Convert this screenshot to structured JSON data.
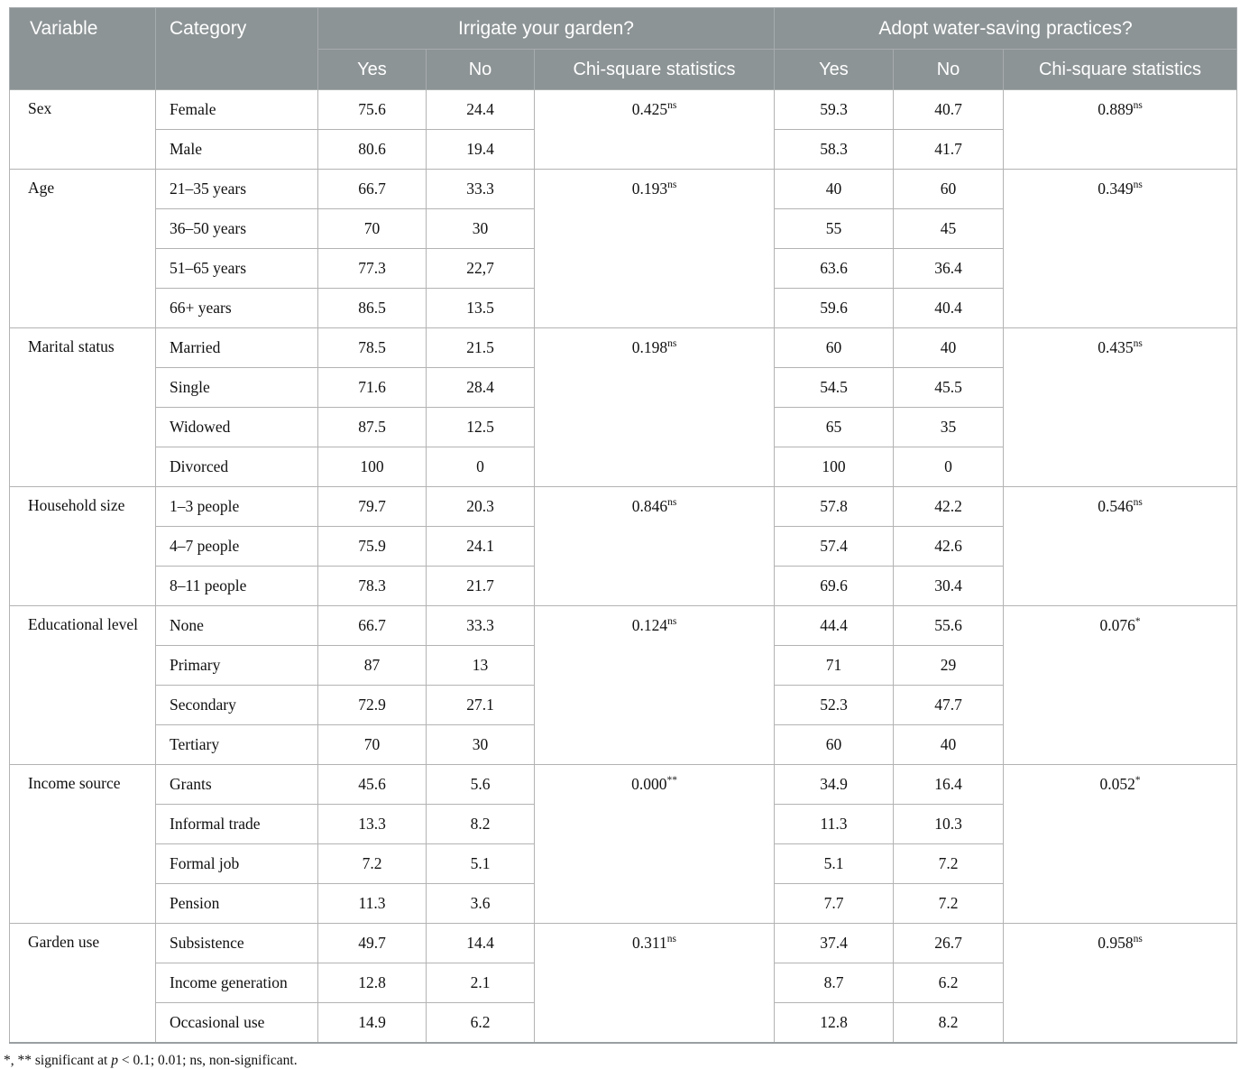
{
  "table": {
    "header": {
      "variable": "Variable",
      "category": "Category",
      "group1": "Irrigate your garden?",
      "group2": "Adopt water-saving practices?",
      "yes": "Yes",
      "no": "No",
      "chi": "Chi-square statistics"
    },
    "sections": [
      {
        "variable": "Sex",
        "chi_irrigate": {
          "value": "0.425",
          "marker": "ns"
        },
        "chi_adopt": {
          "value": "0.889",
          "marker": "ns"
        },
        "rows": [
          {
            "category": "Female",
            "irrigate_yes": "75.6",
            "irrigate_no": "24.4",
            "adopt_yes": "59.3",
            "adopt_no": "40.7"
          },
          {
            "category": "Male",
            "irrigate_yes": "80.6",
            "irrigate_no": "19.4",
            "adopt_yes": "58.3",
            "adopt_no": "41.7"
          }
        ]
      },
      {
        "variable": "Age",
        "chi_irrigate": {
          "value": "0.193",
          "marker": "ns"
        },
        "chi_adopt": {
          "value": "0.349",
          "marker": "ns"
        },
        "rows": [
          {
            "category": "21–35 years",
            "irrigate_yes": "66.7",
            "irrigate_no": "33.3",
            "adopt_yes": "40",
            "adopt_no": "60"
          },
          {
            "category": "36–50 years",
            "irrigate_yes": "70",
            "irrigate_no": "30",
            "adopt_yes": "55",
            "adopt_no": "45"
          },
          {
            "category": "51–65 years",
            "irrigate_yes": "77.3",
            "irrigate_no": "22,7",
            "adopt_yes": "63.6",
            "adopt_no": "36.4"
          },
          {
            "category": "66+ years",
            "irrigate_yes": "86.5",
            "irrigate_no": "13.5",
            "adopt_yes": "59.6",
            "adopt_no": "40.4"
          }
        ]
      },
      {
        "variable": "Marital status",
        "chi_irrigate": {
          "value": "0.198",
          "marker": "ns"
        },
        "chi_adopt": {
          "value": "0.435",
          "marker": "ns"
        },
        "rows": [
          {
            "category": "Married",
            "irrigate_yes": "78.5",
            "irrigate_no": "21.5",
            "adopt_yes": "60",
            "adopt_no": "40"
          },
          {
            "category": "Single",
            "irrigate_yes": "71.6",
            "irrigate_no": "28.4",
            "adopt_yes": "54.5",
            "adopt_no": "45.5"
          },
          {
            "category": "Widowed",
            "irrigate_yes": "87.5",
            "irrigate_no": "12.5",
            "adopt_yes": "65",
            "adopt_no": "35"
          },
          {
            "category": "Divorced",
            "irrigate_yes": "100",
            "irrigate_no": "0",
            "adopt_yes": "100",
            "adopt_no": "0"
          }
        ]
      },
      {
        "variable": "Household size",
        "chi_irrigate": {
          "value": "0.846",
          "marker": "ns"
        },
        "chi_adopt": {
          "value": "0.546",
          "marker": "ns"
        },
        "rows": [
          {
            "category": "1–3 people",
            "irrigate_yes": "79.7",
            "irrigate_no": "20.3",
            "adopt_yes": "57.8",
            "adopt_no": "42.2"
          },
          {
            "category": "4–7 people",
            "irrigate_yes": "75.9",
            "irrigate_no": "24.1",
            "adopt_yes": "57.4",
            "adopt_no": "42.6"
          },
          {
            "category": "8–11 people",
            "irrigate_yes": "78.3",
            "irrigate_no": "21.7",
            "adopt_yes": "69.6",
            "adopt_no": "30.4"
          }
        ]
      },
      {
        "variable": "Educational level",
        "chi_irrigate": {
          "value": "0.124",
          "marker": "ns"
        },
        "chi_adopt": {
          "value": "0.076",
          "marker": "*"
        },
        "rows": [
          {
            "category": "None",
            "irrigate_yes": "66.7",
            "irrigate_no": "33.3",
            "adopt_yes": "44.4",
            "adopt_no": "55.6"
          },
          {
            "category": "Primary",
            "irrigate_yes": "87",
            "irrigate_no": "13",
            "adopt_yes": "71",
            "adopt_no": "29"
          },
          {
            "category": "Secondary",
            "irrigate_yes": "72.9",
            "irrigate_no": "27.1",
            "adopt_yes": "52.3",
            "adopt_no": "47.7"
          },
          {
            "category": "Tertiary",
            "irrigate_yes": "70",
            "irrigate_no": "30",
            "adopt_yes": "60",
            "adopt_no": "40"
          }
        ]
      },
      {
        "variable": "Income source",
        "chi_irrigate": {
          "value": "0.000",
          "marker": "**"
        },
        "chi_adopt": {
          "value": "0.052",
          "marker": "*"
        },
        "rows": [
          {
            "category": "Grants",
            "irrigate_yes": "45.6",
            "irrigate_no": "5.6",
            "adopt_yes": "34.9",
            "adopt_no": "16.4"
          },
          {
            "category": "Informal trade",
            "irrigate_yes": "13.3",
            "irrigate_no": "8.2",
            "adopt_yes": "11.3",
            "adopt_no": "10.3"
          },
          {
            "category": "Formal job",
            "irrigate_yes": "7.2",
            "irrigate_no": "5.1",
            "adopt_yes": "5.1",
            "adopt_no": "7.2"
          },
          {
            "category": "Pension",
            "irrigate_yes": "11.3",
            "irrigate_no": "3.6",
            "adopt_yes": "7.7",
            "adopt_no": "7.2"
          }
        ]
      },
      {
        "variable": "Garden use",
        "chi_irrigate": {
          "value": "0.311",
          "marker": "ns"
        },
        "chi_adopt": {
          "value": "0.958",
          "marker": "ns"
        },
        "rows": [
          {
            "category": "Subsistence",
            "irrigate_yes": "49.7",
            "irrigate_no": "14.4",
            "adopt_yes": "37.4",
            "adopt_no": "26.7"
          },
          {
            "category": "Income generation",
            "irrigate_yes": "12.8",
            "irrigate_no": "2.1",
            "adopt_yes": "8.7",
            "adopt_no": "6.2"
          },
          {
            "category": "Occasional use",
            "irrigate_yes": "14.9",
            "irrigate_no": "6.2",
            "adopt_yes": "12.8",
            "adopt_no": "8.2"
          }
        ]
      }
    ],
    "footnote": {
      "before": "*, ** significant at ",
      "p": "p",
      "after": " < 0.1; 0.01; ns, non-significant."
    }
  }
}
